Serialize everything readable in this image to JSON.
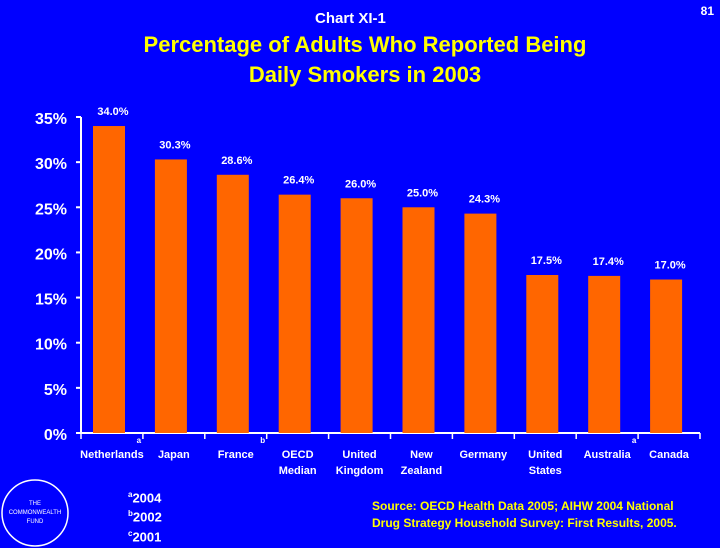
{
  "header": {
    "chart_label": "Chart XI-1",
    "page_number": "81",
    "title_line1": "Percentage of Adults Who Reported Being",
    "title_line2": "Daily Smokers in 2003"
  },
  "colors": {
    "background": "#0000FF",
    "bar": "#FF6600",
    "text": "#FFFFFF",
    "title": "#FFFF00"
  },
  "chart_data": {
    "type": "bar",
    "title": "Percentage of Adults Who Reported Being Daily Smokers in 2003",
    "categories": [
      [
        "Netherlands"
      ],
      [
        "Japan"
      ],
      [
        "France"
      ],
      [
        "OECD",
        "Median"
      ],
      [
        "United",
        "Kingdom"
      ],
      [
        "New",
        "Zealand"
      ],
      [
        "Germany"
      ],
      [
        "United",
        "States"
      ],
      [
        "Australia"
      ],
      [
        "Canada"
      ]
    ],
    "category_notes": [
      "a",
      "",
      "b",
      "",
      "",
      "",
      "",
      "",
      "a",
      ""
    ],
    "values": [
      34.0,
      30.3,
      28.6,
      26.4,
      26.0,
      25.0,
      24.3,
      17.5,
      17.4,
      17.0
    ],
    "value_labels": [
      "34.0%",
      "30.3%",
      "28.6%",
      "26.4%",
      "26.0%",
      "25.0%",
      "24.3%",
      "17.5%",
      "17.4%",
      "17.0%"
    ],
    "yticks": [
      0,
      5,
      10,
      15,
      20,
      25,
      30,
      35
    ],
    "ytick_labels": [
      "0%",
      "5%",
      "10%",
      "15%",
      "20%",
      "25%",
      "30%",
      "35%"
    ],
    "ylim": [
      0,
      35
    ],
    "xlabel": "",
    "ylabel": "",
    "grid": false
  },
  "footnotes": [
    {
      "mark": "a",
      "text": "2004"
    },
    {
      "mark": "b",
      "text": "2002"
    },
    {
      "mark": "c",
      "text": "2001"
    }
  ],
  "source": {
    "line1": "Source: OECD Health Data 2005; AIHW 2004 National",
    "line2": "Drug Strategy Household Survey: First Results, 2005."
  },
  "logo": {
    "line1": "THE",
    "line2": "COMMONWEALTH",
    "line3": "FUND"
  }
}
